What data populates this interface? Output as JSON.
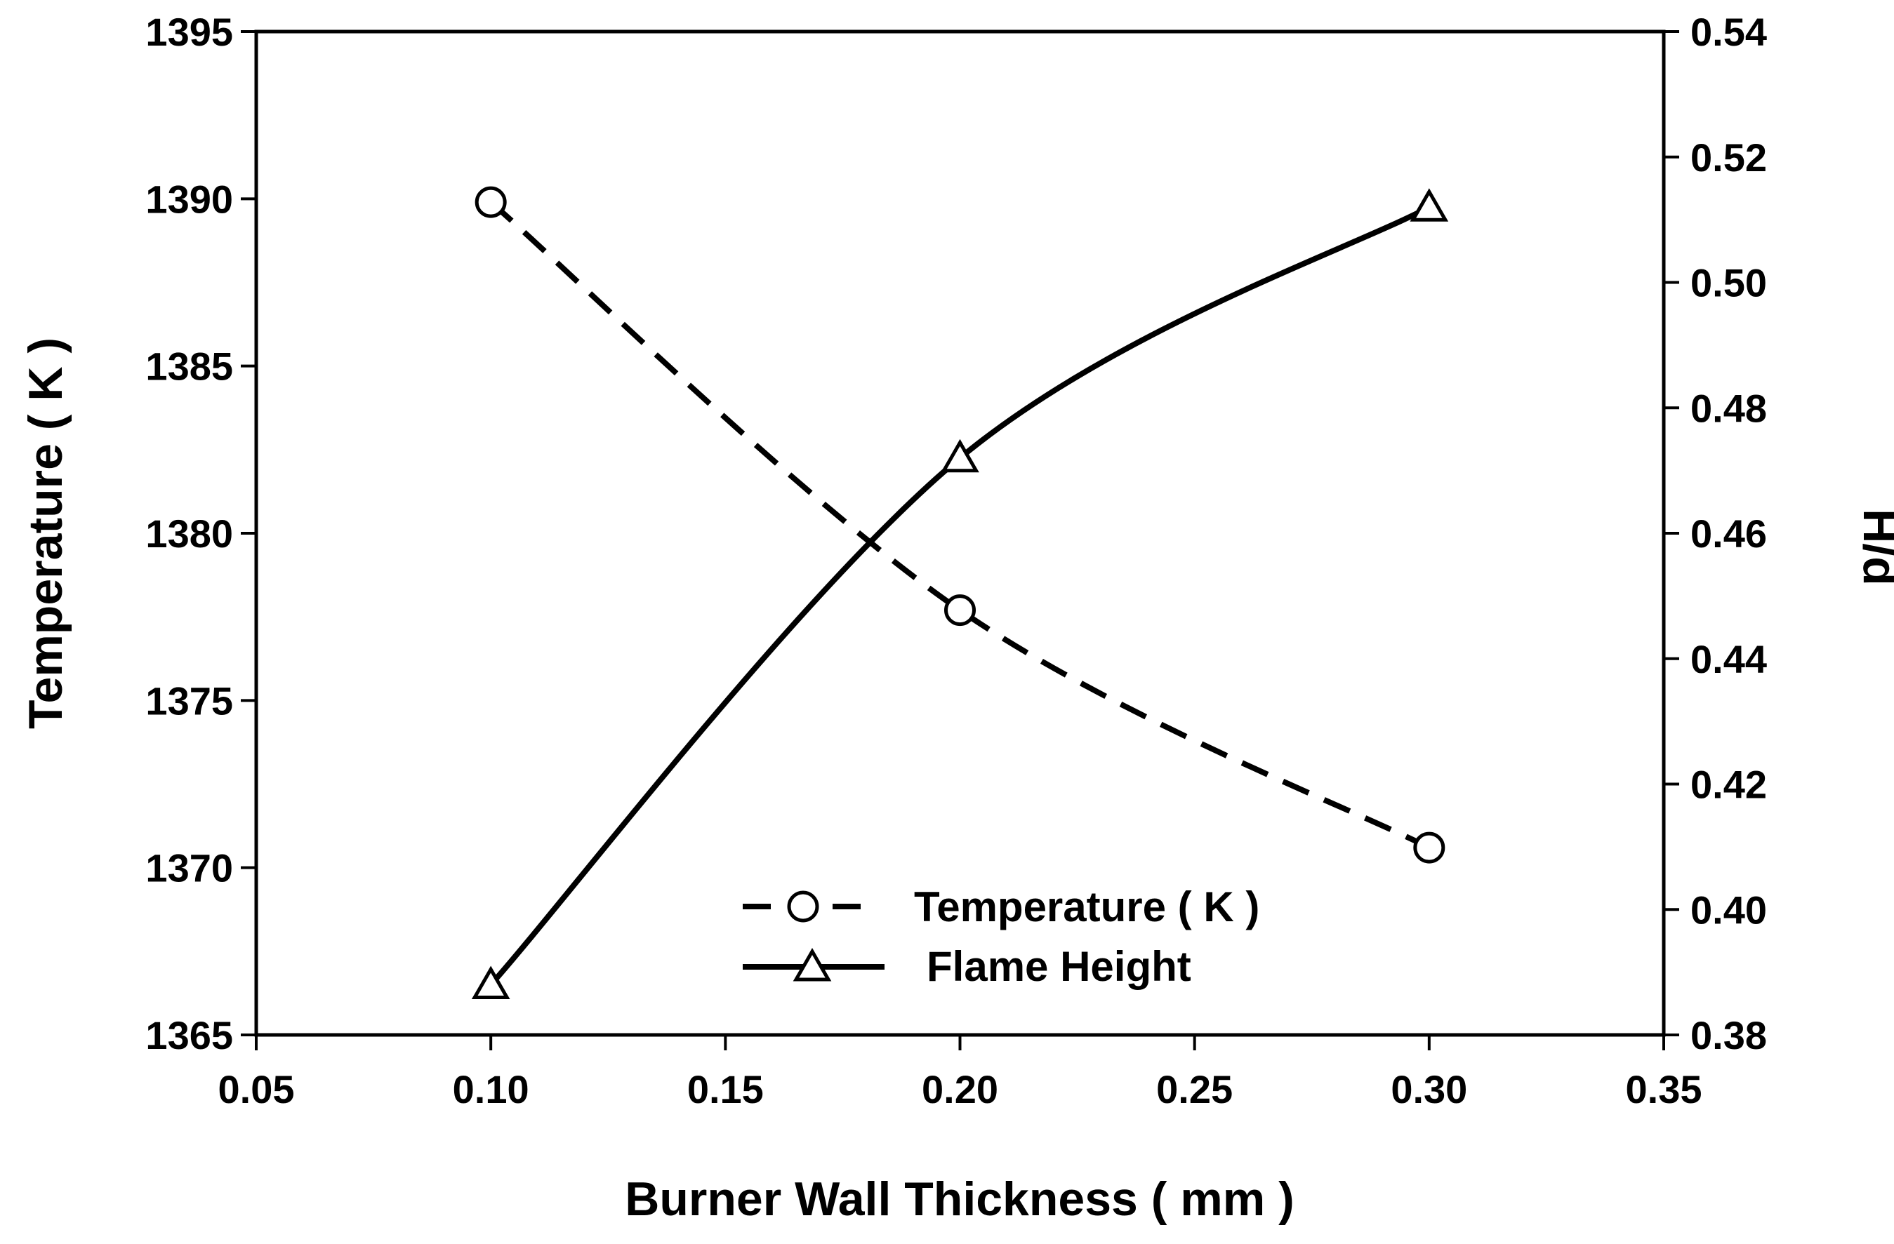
{
  "chart_data": {
    "type": "line",
    "x": [
      0.1,
      0.2,
      0.3
    ],
    "xlabel": "Burner Wall Thickness ( mm )",
    "ylabel_left": "Temperature ( K )",
    "ylabel_right": "H/d",
    "xlim": [
      0.05,
      0.35
    ],
    "ylim_left": [
      1365,
      1395
    ],
    "ylim_right": [
      0.38,
      0.54
    ],
    "x_ticks": [
      "0.05",
      "0.10",
      "0.15",
      "0.20",
      "0.25",
      "0.30",
      "0.35"
    ],
    "y_ticks_left": [
      "1365",
      "1370",
      "1375",
      "1380",
      "1385",
      "1390",
      "1395"
    ],
    "y_ticks_right": [
      "0.38",
      "0.40",
      "0.42",
      "0.44",
      "0.46",
      "0.48",
      "0.50",
      "0.52",
      "0.54"
    ],
    "grid": false,
    "legend_position": "bottom-center",
    "series": [
      {
        "name": "Temperature ( K )",
        "axis": "left",
        "marker": "circle",
        "line": "dashed",
        "values": [
          1389.9,
          1377.7,
          1370.6
        ]
      },
      {
        "name": "Flame Height",
        "axis": "right",
        "marker": "triangle",
        "line": "solid",
        "values": [
          0.388,
          0.472,
          0.512
        ]
      }
    ]
  }
}
